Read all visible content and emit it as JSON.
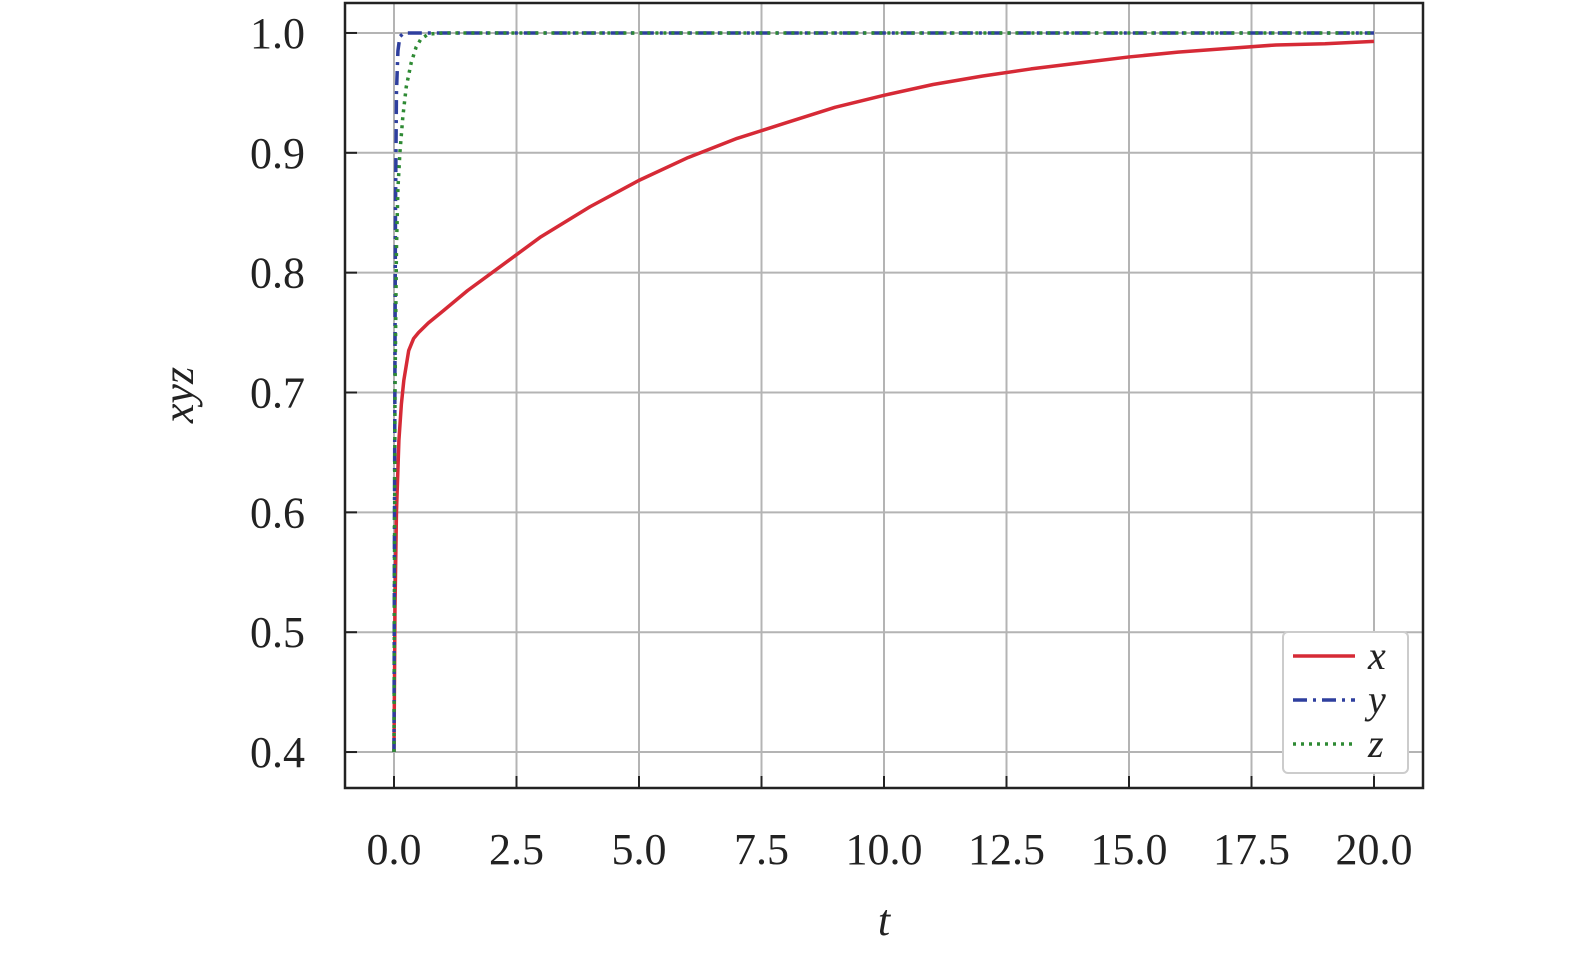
{
  "chart_data": {
    "type": "line",
    "xlabel": "t",
    "ylabel": "xyz",
    "xlim": [
      -1,
      21
    ],
    "ylim": [
      0.37,
      1.025
    ],
    "xticks": [
      0,
      2.5,
      5,
      7.5,
      10,
      12.5,
      15,
      17.5,
      20
    ],
    "xtick_labels": [
      "0.0",
      "2.5",
      "5.0",
      "7.5",
      "10.0",
      "12.5",
      "15.0",
      "17.5",
      "20.0"
    ],
    "yticks": [
      0.4,
      0.5,
      0.6,
      0.7,
      0.8,
      0.9,
      1.0
    ],
    "ytick_labels": [
      "0.4",
      "0.5",
      "0.6",
      "0.7",
      "0.8",
      "0.9",
      "1.0"
    ],
    "grid": true,
    "legend_position": "bottom-right",
    "series": [
      {
        "name": "x",
        "color": "#d62a36",
        "style": "solid",
        "x": [
          0,
          0.02,
          0.05,
          0.1,
          0.15,
          0.2,
          0.3,
          0.4,
          0.5,
          0.7,
          1.0,
          1.5,
          2.0,
          2.5,
          3.0,
          4.0,
          5.0,
          6.0,
          7.0,
          8.0,
          9.0,
          10.0,
          11.0,
          12.0,
          13.0,
          14.0,
          15.0,
          16.0,
          17.0,
          18.0,
          19.0,
          20.0
        ],
        "values": [
          0.4,
          0.52,
          0.6,
          0.66,
          0.69,
          0.71,
          0.735,
          0.745,
          0.75,
          0.758,
          0.768,
          0.785,
          0.8,
          0.815,
          0.83,
          0.855,
          0.877,
          0.896,
          0.912,
          0.925,
          0.938,
          0.948,
          0.957,
          0.964,
          0.97,
          0.975,
          0.98,
          0.984,
          0.987,
          0.99,
          0.991,
          0.993
        ]
      },
      {
        "name": "y",
        "color": "#2e3f9e",
        "style": "dashdot",
        "x": [
          0,
          0.01,
          0.03,
          0.05,
          0.08,
          0.12,
          0.2,
          0.5,
          1.0,
          5.0,
          10.0,
          15.0,
          20.0
        ],
        "values": [
          0.4,
          0.6,
          0.85,
          0.95,
          0.985,
          0.997,
          1.0,
          1.0,
          1.0,
          1.0,
          1.0,
          1.0,
          1.0
        ]
      },
      {
        "name": "z",
        "color": "#2e8a34",
        "style": "dotted",
        "x": [
          0,
          0.02,
          0.05,
          0.08,
          0.12,
          0.18,
          0.25,
          0.35,
          0.45,
          0.55,
          0.7,
          1.0,
          5.0,
          10.0,
          15.0,
          20.0
        ],
        "values": [
          0.4,
          0.7,
          0.82,
          0.87,
          0.9,
          0.93,
          0.955,
          0.975,
          0.988,
          0.995,
          0.999,
          1.0,
          1.0,
          1.0,
          1.0,
          1.0
        ]
      }
    ]
  }
}
